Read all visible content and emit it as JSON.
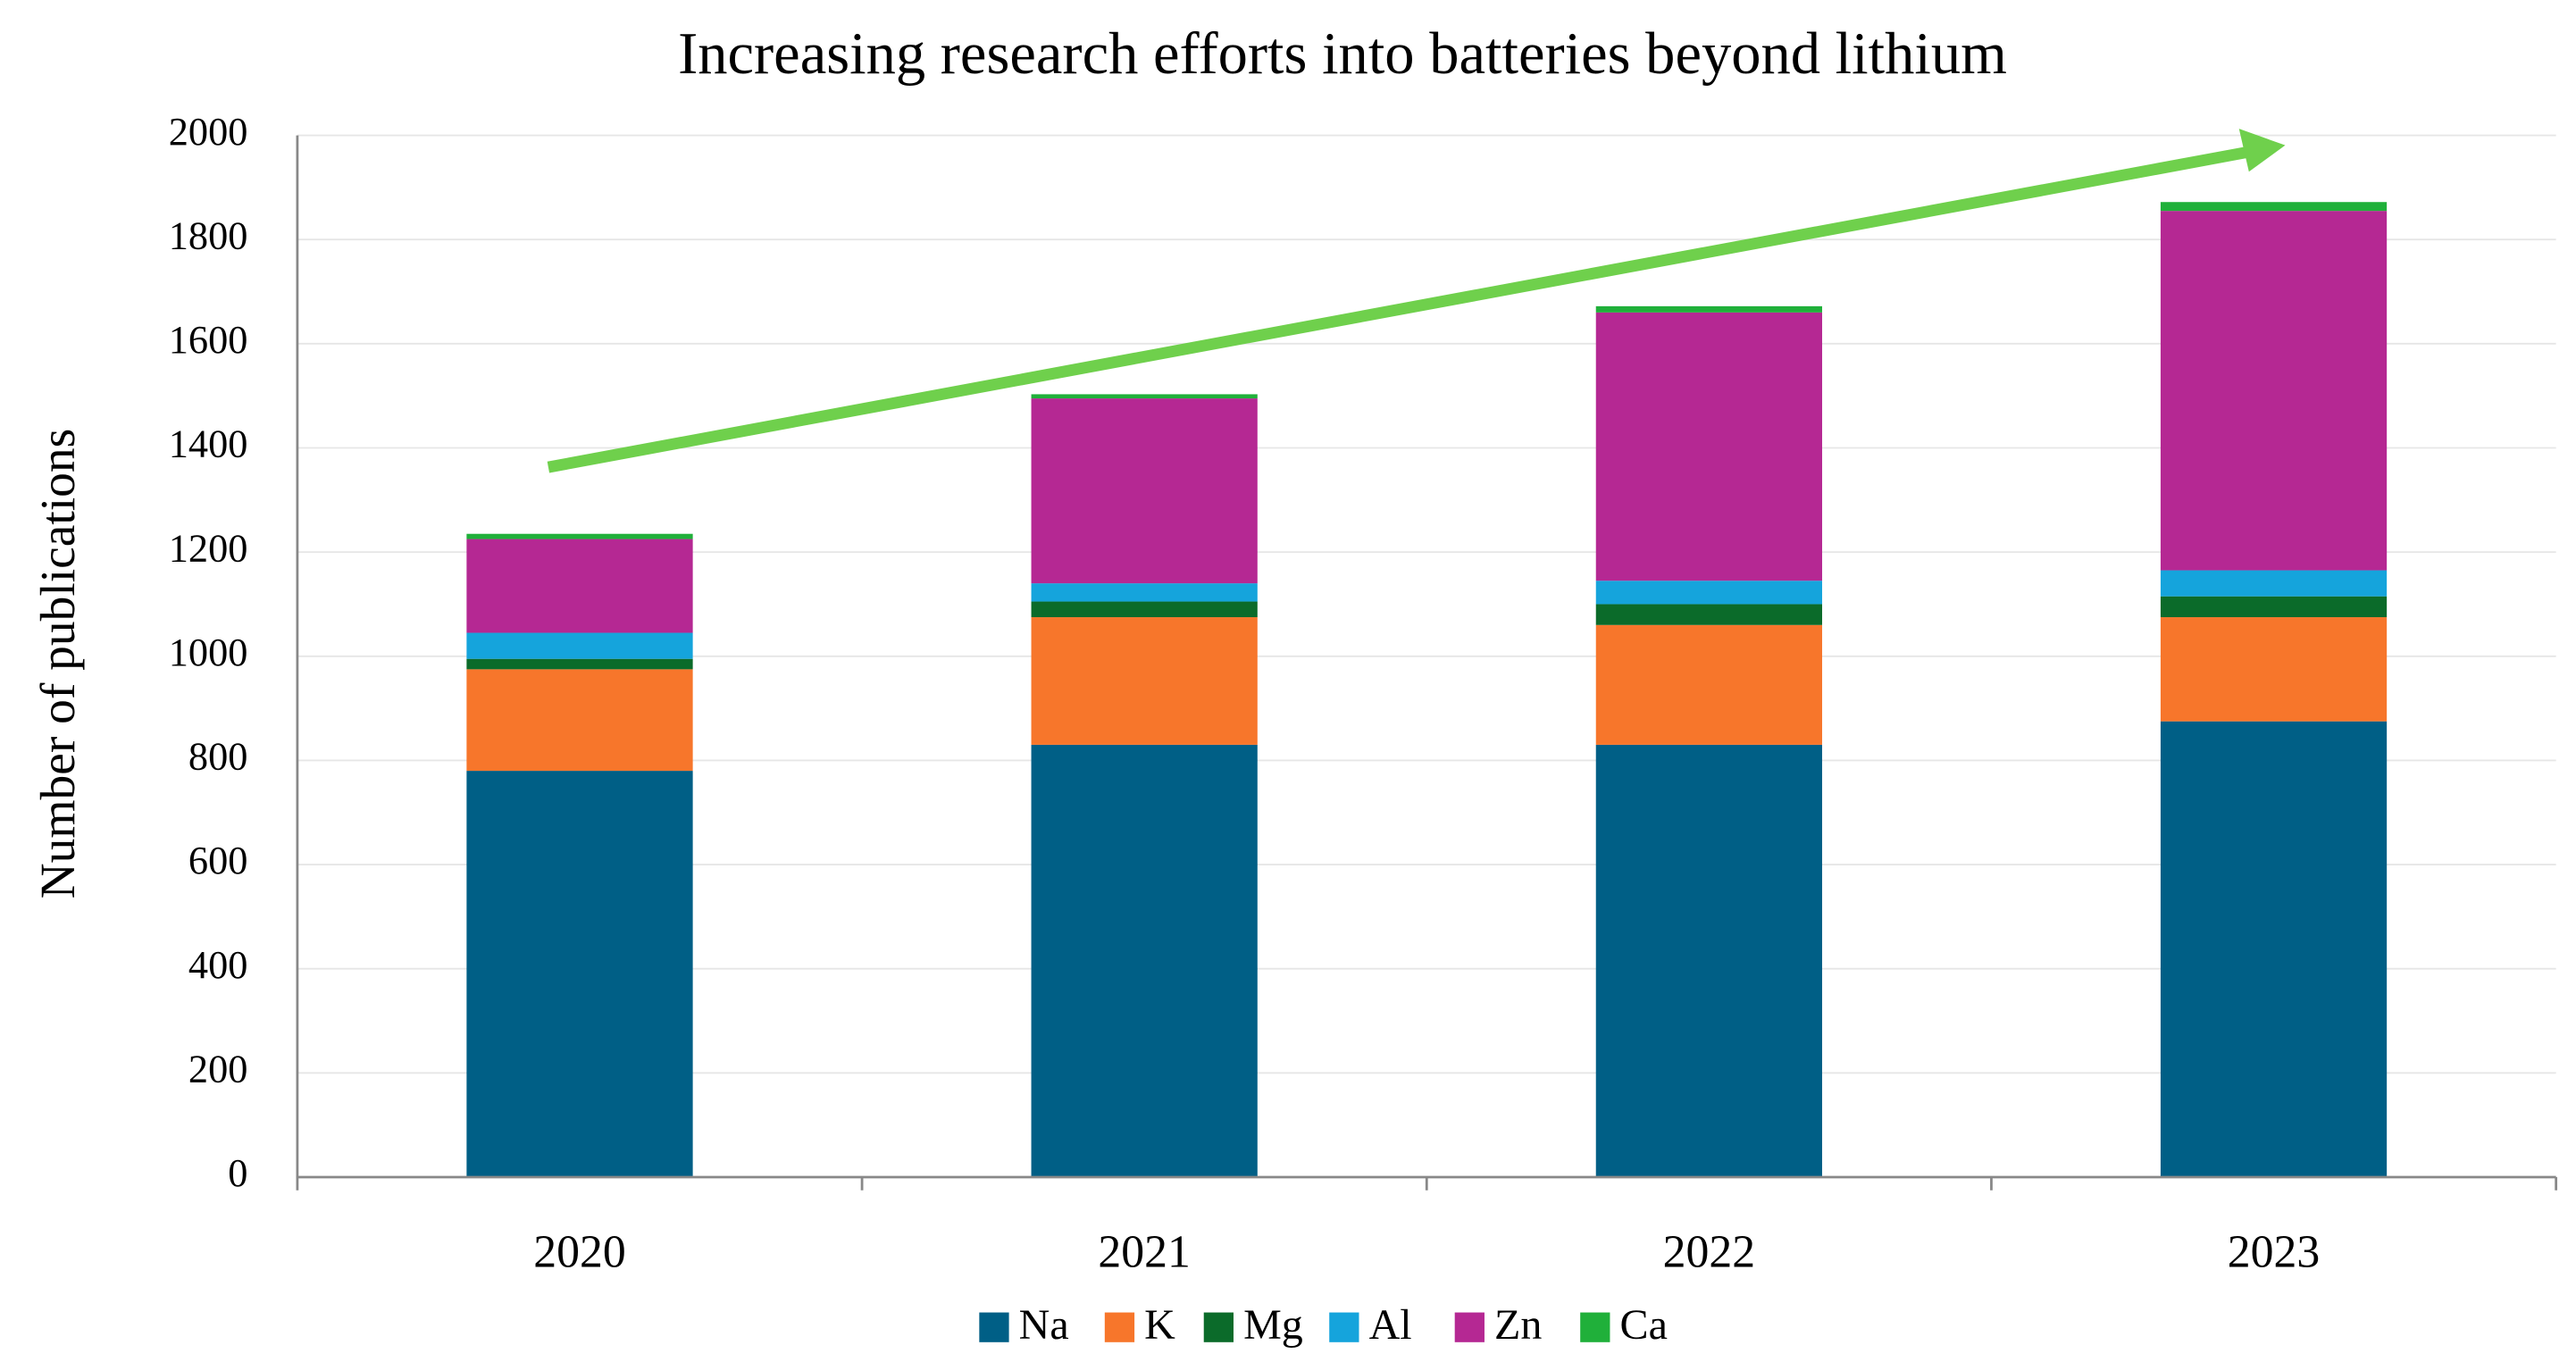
{
  "chart_data": {
    "type": "stacked_bar",
    "title": "Increasing research efforts into batteries beyond lithium",
    "y_label": "Number of publications",
    "categories": [
      "2020",
      "2021",
      "2022",
      "2023"
    ],
    "series": [
      {
        "name": "Na",
        "color": "#005f86",
        "values": [
          780,
          830,
          830,
          875
        ]
      },
      {
        "name": "K",
        "color": "#f7762b",
        "values": [
          195,
          245,
          230,
          200
        ]
      },
      {
        "name": "Mg",
        "color": "#0b6b2a",
        "values": [
          20,
          30,
          40,
          40
        ]
      },
      {
        "name": "Al",
        "color": "#15a4dc",
        "values": [
          50,
          35,
          45,
          50
        ]
      },
      {
        "name": "Zn",
        "color": "#b52893",
        "values": [
          180,
          355,
          515,
          690
        ]
      },
      {
        "name": "Ca",
        "color": "#20b03a",
        "values": [
          10,
          8,
          12,
          17
        ]
      }
    ],
    "ylim": [
      0,
      2000
    ],
    "yticks": [
      0,
      200,
      400,
      600,
      800,
      1000,
      1200,
      1400,
      1600,
      1800,
      2000
    ],
    "grid": true
  }
}
